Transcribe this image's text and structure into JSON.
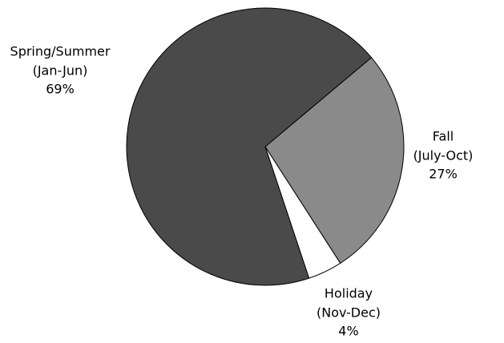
{
  "chart_data": {
    "type": "pie",
    "categories": [
      "Fall",
      "Holiday",
      "Spring/Summer"
    ],
    "periods": [
      "(July-Oct)",
      "(Nov-Dec)",
      "(Jan-Jun)"
    ],
    "values": [
      27,
      4,
      69
    ],
    "value_labels": [
      "27%",
      "4%",
      "69%"
    ],
    "colors": [
      "#8a8a8a",
      "#ffffff",
      "#4a4a4a"
    ],
    "start_angle": 50
  }
}
